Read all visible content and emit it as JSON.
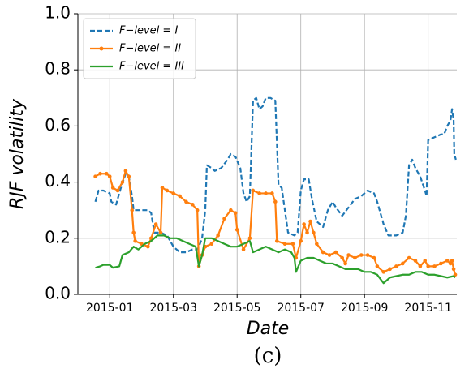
{
  "chart_data": {
    "type": "line",
    "xlabel": "Date",
    "ylabel": "RJF volatility",
    "caption": "(c)",
    "xlim": [
      0,
      11.9
    ],
    "ylim": [
      0,
      1
    ],
    "xticks": [
      {
        "value": 1,
        "label": "2015-01"
      },
      {
        "value": 3,
        "label": "2015-03"
      },
      {
        "value": 5,
        "label": "2015-05"
      },
      {
        "value": 7,
        "label": "2015-07"
      },
      {
        "value": 9,
        "label": "2015-09"
      },
      {
        "value": 11,
        "label": "2015-11"
      }
    ],
    "yticks": [
      {
        "value": 0,
        "label": "0.0"
      },
      {
        "value": 0.2,
        "label": "0.2"
      },
      {
        "value": 0.4,
        "label": "0.4"
      },
      {
        "value": 0.6,
        "label": "0.6"
      },
      {
        "value": 0.8,
        "label": "0.8"
      },
      {
        "value": 1,
        "label": "1.0"
      }
    ],
    "grid": true,
    "legend": "upper left",
    "series": [
      {
        "name": "F−level = I",
        "color": "#1f77b4",
        "dash": true,
        "markers": false,
        "x": [
          0.55,
          0.65,
          0.8,
          1.0,
          1.05,
          1.2,
          1.35,
          1.5,
          1.6,
          1.7,
          1.75,
          2.0,
          2.2,
          2.3,
          2.4,
          2.6,
          2.8,
          2.9,
          3.0,
          3.2,
          3.4,
          3.6,
          3.75,
          3.8,
          3.9,
          4.0,
          4.05,
          4.2,
          4.3,
          4.5,
          4.7,
          4.8,
          4.95,
          5.1,
          5.2,
          5.3,
          5.4,
          5.5,
          5.6,
          5.7,
          5.8,
          5.9,
          6.05,
          6.2,
          6.3,
          6.4,
          6.6,
          6.8,
          6.9,
          7.0,
          7.1,
          7.25,
          7.35,
          7.5,
          7.7,
          7.85,
          8.0,
          8.1,
          8.3,
          8.5,
          8.7,
          8.9,
          9.1,
          9.3,
          9.4,
          9.6,
          9.75,
          10.0,
          10.2,
          10.3,
          10.4,
          10.5,
          10.6,
          10.75,
          10.9,
          10.95,
          11.0,
          11.2,
          11.4,
          11.5,
          11.6,
          11.7,
          11.75,
          11.8,
          11.82,
          11.87
        ],
        "values": [
          0.33,
          0.37,
          0.37,
          0.36,
          0.33,
          0.32,
          0.38,
          0.43,
          0.42,
          0.35,
          0.3,
          0.3,
          0.3,
          0.29,
          0.22,
          0.22,
          0.21,
          0.19,
          0.17,
          0.15,
          0.15,
          0.16,
          0.16,
          0.17,
          0.2,
          0.3,
          0.46,
          0.45,
          0.44,
          0.45,
          0.48,
          0.5,
          0.49,
          0.45,
          0.36,
          0.33,
          0.35,
          0.69,
          0.7,
          0.66,
          0.67,
          0.7,
          0.7,
          0.69,
          0.39,
          0.38,
          0.22,
          0.21,
          0.22,
          0.37,
          0.41,
          0.41,
          0.34,
          0.26,
          0.24,
          0.3,
          0.33,
          0.31,
          0.28,
          0.31,
          0.34,
          0.35,
          0.37,
          0.36,
          0.33,
          0.25,
          0.21,
          0.21,
          0.22,
          0.28,
          0.46,
          0.48,
          0.45,
          0.42,
          0.37,
          0.35,
          0.55,
          0.56,
          0.57,
          0.57,
          0.6,
          0.62,
          0.66,
          0.62,
          0.5,
          0.48
        ]
      },
      {
        "name": "F−level = II",
        "color": "#ff7f0e",
        "dash": false,
        "markers": true,
        "x": [
          0.55,
          0.7,
          0.9,
          1.0,
          1.1,
          1.25,
          1.4,
          1.5,
          1.6,
          1.7,
          1.75,
          1.8,
          2.0,
          2.2,
          2.3,
          2.45,
          2.6,
          2.65,
          2.8,
          3.0,
          3.2,
          3.4,
          3.6,
          3.75,
          3.8,
          3.9,
          4.0,
          4.2,
          4.4,
          4.6,
          4.8,
          4.95,
          5.0,
          5.2,
          5.4,
          5.5,
          5.7,
          5.9,
          6.1,
          6.2,
          6.25,
          6.5,
          6.75,
          6.85,
          7.0,
          7.1,
          7.2,
          7.3,
          7.4,
          7.5,
          7.7,
          7.9,
          8.1,
          8.3,
          8.4,
          8.5,
          8.7,
          8.9,
          9.1,
          9.3,
          9.4,
          9.6,
          9.8,
          10.0,
          10.2,
          10.4,
          10.6,
          10.75,
          10.9,
          11.0,
          11.2,
          11.4,
          11.6,
          11.7,
          11.75,
          11.8,
          11.85
        ],
        "values": [
          0.42,
          0.43,
          0.43,
          0.42,
          0.38,
          0.37,
          0.4,
          0.44,
          0.42,
          0.3,
          0.22,
          0.19,
          0.18,
          0.17,
          0.2,
          0.25,
          0.22,
          0.38,
          0.37,
          0.36,
          0.35,
          0.33,
          0.32,
          0.3,
          0.1,
          0.14,
          0.17,
          0.18,
          0.21,
          0.27,
          0.3,
          0.29,
          0.23,
          0.16,
          0.2,
          0.37,
          0.36,
          0.36,
          0.36,
          0.33,
          0.19,
          0.18,
          0.18,
          0.13,
          0.19,
          0.25,
          0.22,
          0.26,
          0.22,
          0.18,
          0.15,
          0.14,
          0.15,
          0.13,
          0.11,
          0.14,
          0.13,
          0.14,
          0.14,
          0.13,
          0.1,
          0.08,
          0.09,
          0.1,
          0.11,
          0.13,
          0.12,
          0.1,
          0.12,
          0.1,
          0.1,
          0.11,
          0.12,
          0.11,
          0.12,
          0.09,
          0.07
        ]
      },
      {
        "name": "F−level = III",
        "color": "#2ca02c",
        "dash": false,
        "markers": false,
        "x": [
          0.55,
          0.7,
          0.8,
          1.0,
          1.1,
          1.3,
          1.4,
          1.6,
          1.75,
          1.9,
          2.1,
          2.3,
          2.5,
          2.7,
          2.9,
          3.1,
          3.3,
          3.5,
          3.7,
          3.8,
          3.9,
          4.0,
          4.2,
          4.4,
          4.6,
          4.8,
          5.0,
          5.2,
          5.4,
          5.5,
          5.7,
          5.9,
          6.1,
          6.3,
          6.5,
          6.7,
          6.8,
          6.85,
          7.0,
          7.2,
          7.4,
          7.6,
          7.8,
          8.0,
          8.2,
          8.4,
          8.6,
          8.8,
          9.0,
          9.2,
          9.4,
          9.6,
          9.8,
          10.0,
          10.2,
          10.4,
          10.6,
          10.8,
          11.0,
          11.2,
          11.4,
          11.6,
          11.8,
          11.85
        ],
        "values": [
          0.095,
          0.1,
          0.105,
          0.105,
          0.095,
          0.1,
          0.14,
          0.15,
          0.17,
          0.16,
          0.18,
          0.19,
          0.21,
          0.21,
          0.2,
          0.2,
          0.19,
          0.18,
          0.17,
          0.1,
          0.14,
          0.2,
          0.2,
          0.19,
          0.18,
          0.17,
          0.17,
          0.18,
          0.19,
          0.15,
          0.16,
          0.17,
          0.16,
          0.15,
          0.16,
          0.15,
          0.13,
          0.08,
          0.12,
          0.13,
          0.13,
          0.12,
          0.11,
          0.11,
          0.1,
          0.09,
          0.09,
          0.09,
          0.08,
          0.08,
          0.07,
          0.04,
          0.06,
          0.065,
          0.07,
          0.07,
          0.08,
          0.08,
          0.07,
          0.07,
          0.065,
          0.06,
          0.065,
          0.06
        ]
      }
    ]
  }
}
